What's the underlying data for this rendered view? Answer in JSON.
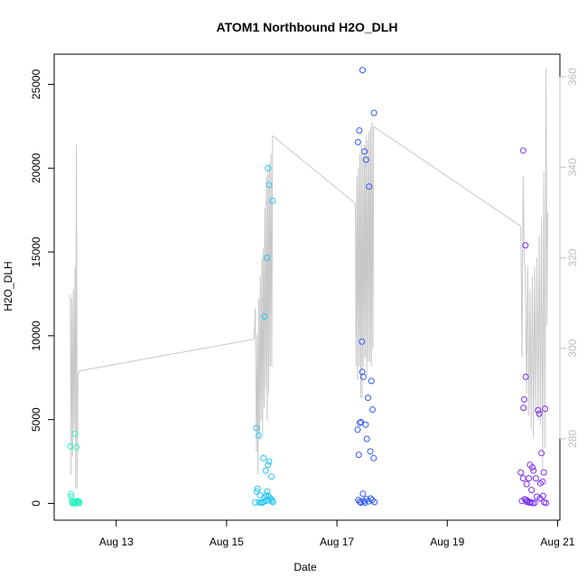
{
  "chart_data": {
    "type": "scatter",
    "title": "ATOM1 Northbound H2O_DLH",
    "xlabel": "Date",
    "ylabel": "H2O_DLH",
    "xlim": [
      "2018-08-11T21:00",
      "2018-08-21T01:00"
    ],
    "ylim": [
      -1000,
      26800
    ],
    "y2lim": [
      262,
      365
    ],
    "x_ticks": [
      {
        "t": "2018-08-13T00:00",
        "label": "Aug 13"
      },
      {
        "t": "2018-08-15T00:00",
        "label": "Aug 15"
      },
      {
        "t": "2018-08-17T00:00",
        "label": "Aug 17"
      },
      {
        "t": "2018-08-19T00:00",
        "label": "Aug 19"
      },
      {
        "t": "2018-08-21T00:00",
        "label": "Aug 21"
      }
    ],
    "y_ticks": [
      0,
      5000,
      10000,
      15000,
      20000,
      25000
    ],
    "y2_ticks": [
      280,
      300,
      320,
      340,
      360
    ],
    "colors": {
      "flight1": "#2cf3c0",
      "flight2": "#26c5f0",
      "flight3": "#3159ee",
      "flight4": "#7a2ff0",
      "secondary_line": "#c8c8c8",
      "right_axis": "#c0c0c0"
    },
    "series": [
      {
        "color_key": "flight1",
        "points": [
          [
            "2018-08-12T04:00",
            3400
          ],
          [
            "2018-08-12T04:15",
            550
          ],
          [
            "2018-08-12T04:30",
            400
          ],
          [
            "2018-08-12T04:45",
            150
          ],
          [
            "2018-08-12T05:00",
            20
          ],
          [
            "2018-08-12T05:20",
            50
          ],
          [
            "2018-08-12T05:40",
            100
          ],
          [
            "2018-08-12T06:00",
            4150
          ],
          [
            "2018-08-12T06:20",
            60
          ],
          [
            "2018-08-12T06:40",
            3350
          ],
          [
            "2018-08-12T07:00",
            90
          ],
          [
            "2018-08-12T07:20",
            20
          ],
          [
            "2018-08-12T07:40",
            120
          ],
          [
            "2018-08-12T08:00",
            40
          ],
          [
            "2018-08-12T06:10",
            10
          ],
          [
            "2018-08-12T05:10",
            80
          ],
          [
            "2018-08-12T07:10",
            150
          ],
          [
            "2018-08-12T06:30",
            30
          ]
        ]
      },
      {
        "color_key": "flight2",
        "points": [
          [
            "2018-08-15T13:00",
            4500
          ],
          [
            "2018-08-15T14:00",
            4050
          ],
          [
            "2018-08-15T12:30",
            50
          ],
          [
            "2018-08-15T13:30",
            880
          ],
          [
            "2018-08-15T14:30",
            500
          ],
          [
            "2018-08-15T13:10",
            700
          ],
          [
            "2018-08-15T15:00",
            50
          ],
          [
            "2018-08-15T16:00",
            2700
          ],
          [
            "2018-08-15T16:30",
            11150
          ],
          [
            "2018-08-15T17:00",
            1950
          ],
          [
            "2018-08-15T17:30",
            14650
          ],
          [
            "2018-08-15T18:00",
            2300
          ],
          [
            "2018-08-15T18:30",
            2500
          ],
          [
            "2018-08-15T18:00",
            20000
          ],
          [
            "2018-08-15T18:30",
            19000
          ],
          [
            "2018-08-15T20:00",
            18050
          ],
          [
            "2018-08-15T19:30",
            1600
          ],
          [
            "2018-08-15T17:40",
            700
          ],
          [
            "2018-08-15T18:10",
            450
          ],
          [
            "2018-08-15T19:00",
            300
          ],
          [
            "2018-08-15T19:30",
            250
          ],
          [
            "2018-08-15T16:00",
            100
          ],
          [
            "2018-08-15T17:00",
            150
          ],
          [
            "2018-08-15T19:50",
            150
          ],
          [
            "2018-08-15T18:20",
            180
          ],
          [
            "2018-08-15T15:30",
            40
          ],
          [
            "2018-08-15T14:10",
            60
          ],
          [
            "2018-08-15T20:10",
            80
          ],
          [
            "2018-08-15T17:10",
            500
          ],
          [
            "2018-08-15T16:40",
            350
          ]
        ]
      },
      {
        "color_key": "flight3",
        "points": [
          [
            "2018-08-17T09:00",
            4400
          ],
          [
            "2018-08-17T09:30",
            2900
          ],
          [
            "2018-08-17T10:00",
            4800
          ],
          [
            "2018-08-17T10:30",
            4850
          ],
          [
            "2018-08-17T11:00",
            7850
          ],
          [
            "2018-08-17T11:30",
            7550
          ],
          [
            "2018-08-17T12:30",
            4700
          ],
          [
            "2018-08-17T13:00",
            3850
          ],
          [
            "2018-08-17T13:30",
            6300
          ],
          [
            "2018-08-17T14:30",
            3100
          ],
          [
            "2018-08-17T15:00",
            7300
          ],
          [
            "2018-08-17T15:30",
            5600
          ],
          [
            "2018-08-17T16:00",
            2700
          ],
          [
            "2018-08-17T09:10",
            21550
          ],
          [
            "2018-08-17T09:45",
            22250
          ],
          [
            "2018-08-17T10:50",
            9650
          ],
          [
            "2018-08-17T11:10",
            25850
          ],
          [
            "2018-08-17T12:00",
            21000
          ],
          [
            "2018-08-17T12:40",
            20500
          ],
          [
            "2018-08-17T14:00",
            18900
          ],
          [
            "2018-08-17T16:10",
            23300
          ],
          [
            "2018-08-17T09:20",
            200
          ],
          [
            "2018-08-17T10:00",
            100
          ],
          [
            "2018-08-17T10:30",
            50
          ],
          [
            "2018-08-17T11:20",
            580
          ],
          [
            "2018-08-17T12:10",
            50
          ],
          [
            "2018-08-17T12:50",
            250
          ],
          [
            "2018-08-17T13:50",
            120
          ],
          [
            "2018-08-17T14:40",
            300
          ],
          [
            "2018-08-17T15:20",
            200
          ],
          [
            "2018-08-17T16:20",
            80
          ],
          [
            "2018-08-17T11:40",
            150
          ]
        ]
      },
      {
        "color_key": "flight4",
        "points": [
          [
            "2018-08-20T09:00",
            21050
          ],
          [
            "2018-08-20T10:00",
            15400
          ],
          [
            "2018-08-20T09:30",
            6200
          ],
          [
            "2018-08-20T09:10",
            5700
          ],
          [
            "2018-08-20T10:10",
            7550
          ],
          [
            "2018-08-20T08:00",
            1850
          ],
          [
            "2018-08-20T09:00",
            1500
          ],
          [
            "2018-08-20T10:30",
            1150
          ],
          [
            "2018-08-20T11:30",
            1500
          ],
          [
            "2018-08-20T12:00",
            2300
          ],
          [
            "2018-08-20T13:00",
            2150
          ],
          [
            "2018-08-20T13:30",
            1950
          ],
          [
            "2018-08-20T12:40",
            800
          ],
          [
            "2018-08-20T14:30",
            1500
          ],
          [
            "2018-08-20T15:30",
            5550
          ],
          [
            "2018-08-20T16:00",
            5350
          ],
          [
            "2018-08-20T17:00",
            3000
          ],
          [
            "2018-08-20T18:00",
            1850
          ],
          [
            "2018-08-20T18:30",
            5650
          ],
          [
            "2018-08-20T17:30",
            1300
          ],
          [
            "2018-08-20T16:30",
            1200
          ],
          [
            "2018-08-20T15:00",
            400
          ],
          [
            "2018-08-20T16:20",
            300
          ],
          [
            "2018-08-20T17:40",
            450
          ],
          [
            "2018-08-20T10:20",
            200
          ],
          [
            "2018-08-20T10:40",
            100
          ],
          [
            "2018-08-20T11:00",
            150
          ],
          [
            "2018-08-20T11:40",
            50
          ],
          [
            "2018-08-20T12:20",
            80
          ],
          [
            "2018-08-20T13:10",
            20
          ],
          [
            "2018-08-20T14:00",
            30
          ],
          [
            "2018-08-20T19:00",
            30
          ],
          [
            "2018-08-20T18:10",
            70
          ],
          [
            "2018-08-20T08:30",
            150
          ],
          [
            "2018-08-20T09:40",
            250
          ]
        ]
      }
    ],
    "secondary_series": [
      {
        "segments": [
          [
            [
              "2018-08-12T04:00",
              312
            ],
            [
              "2018-08-12T04:20",
              272
            ],
            [
              "2018-08-12T04:40",
              311
            ],
            [
              "2018-08-12T05:00",
              276
            ],
            [
              "2018-08-12T05:20",
              313
            ],
            [
              "2018-08-12T05:40",
              282
            ],
            [
              "2018-08-12T06:00",
              318
            ],
            [
              "2018-08-12T06:20",
              269
            ],
            [
              "2018-08-12T06:40",
              345
            ],
            [
              "2018-08-12T07:00",
              269
            ],
            [
              "2018-08-12T07:20",
              294
            ],
            [
              "2018-08-12T08:00",
              295
            ]
          ],
          [
            [
              "2018-08-12T08:00",
              295
            ],
            [
              "2018-08-15T12:00",
              302
            ]
          ],
          [
            [
              "2018-08-15T12:00",
              302
            ],
            [
              "2018-08-15T12:30",
              309
            ],
            [
              "2018-08-15T13:00",
              277
            ],
            [
              "2018-08-15T13:20",
              303
            ],
            [
              "2018-08-15T13:40",
              272
            ],
            [
              "2018-08-15T14:00",
              311
            ],
            [
              "2018-08-15T14:20",
              280
            ],
            [
              "2018-08-15T14:40",
              316
            ],
            [
              "2018-08-15T15:00",
              284
            ],
            [
              "2018-08-15T15:20",
              320
            ],
            [
              "2018-08-15T15:40",
              281
            ],
            [
              "2018-08-15T16:00",
              322
            ],
            [
              "2018-08-15T16:20",
              287
            ],
            [
              "2018-08-15T16:40",
              331
            ],
            [
              "2018-08-15T17:00",
              291
            ],
            [
              "2018-08-15T17:20",
              338
            ],
            [
              "2018-08-15T17:40",
              284
            ],
            [
              "2018-08-15T18:00",
              340
            ],
            [
              "2018-08-15T18:20",
              290
            ],
            [
              "2018-08-15T18:40",
              341
            ],
            [
              "2018-08-15T19:00",
              296
            ],
            [
              "2018-08-15T19:20",
              343
            ],
            [
              "2018-08-15T19:40",
              296
            ],
            [
              "2018-08-15T20:00",
              347
            ]
          ],
          [
            [
              "2018-08-15T20:00",
              347
            ],
            [
              "2018-08-17T08:00",
              332
            ]
          ],
          [
            [
              "2018-08-17T08:00",
              332
            ],
            [
              "2018-08-17T08:20",
              296
            ],
            [
              "2018-08-17T08:40",
              338
            ],
            [
              "2018-08-17T09:00",
              293
            ],
            [
              "2018-08-17T09:20",
              340
            ],
            [
              "2018-08-17T09:40",
              296
            ],
            [
              "2018-08-17T10:00",
              343
            ],
            [
              "2018-08-17T10:20",
              289
            ],
            [
              "2018-08-17T10:40",
              345
            ],
            [
              "2018-08-17T11:00",
              289
            ],
            [
              "2018-08-17T11:20",
              343
            ],
            [
              "2018-08-17T11:40",
              296
            ],
            [
              "2018-08-17T12:00",
              345
            ],
            [
              "2018-08-17T12:20",
              298
            ],
            [
              "2018-08-17T12:40",
              347
            ],
            [
              "2018-08-17T13:00",
              294
            ],
            [
              "2018-08-17T13:20",
              346
            ],
            [
              "2018-08-17T13:40",
              297
            ],
            [
              "2018-08-17T14:00",
              348
            ],
            [
              "2018-08-17T14:20",
              297
            ],
            [
              "2018-08-17T14:40",
              349
            ],
            [
              "2018-08-17T15:00",
              296
            ],
            [
              "2018-08-17T15:20",
              350
            ],
            [
              "2018-08-17T15:40",
              300
            ],
            [
              "2018-08-17T16:00",
              349
            ]
          ],
          [
            [
              "2018-08-17T16:00",
              349
            ],
            [
              "2018-08-20T08:00",
              327
            ]
          ],
          [
            [
              "2018-08-20T08:00",
              327
            ],
            [
              "2018-08-20T08:30",
              298
            ],
            [
              "2018-08-20T09:00",
              338
            ],
            [
              "2018-08-20T09:30",
              320
            ],
            [
              "2018-08-20T10:00",
              316
            ],
            [
              "2018-08-20T10:30",
              290
            ],
            [
              "2018-08-20T11:00",
              318
            ],
            [
              "2018-08-20T11:30",
              285
            ],
            [
              "2018-08-20T12:00",
              313
            ],
            [
              "2018-08-20T12:30",
              282
            ],
            [
              "2018-08-20T13:00",
              316
            ],
            [
              "2018-08-20T13:30",
              280
            ],
            [
              "2018-08-20T14:00",
              318
            ],
            [
              "2018-08-20T14:30",
              286
            ],
            [
              "2018-08-20T15:00",
              320
            ],
            [
              "2018-08-20T15:30",
              284
            ],
            [
              "2018-08-20T16:00",
              325
            ],
            [
              "2018-08-20T16:30",
              283
            ],
            [
              "2018-08-20T17:00",
              329
            ],
            [
              "2018-08-20T17:30",
              273
            ],
            [
              "2018-08-20T18:00",
              339
            ],
            [
              "2018-08-20T18:30",
              278
            ],
            [
              "2018-08-20T19:00",
              362
            ],
            [
              "2018-08-20T19:20",
              305
            ],
            [
              "2018-08-20T19:40",
              330
            ]
          ]
        ]
      }
    ]
  }
}
